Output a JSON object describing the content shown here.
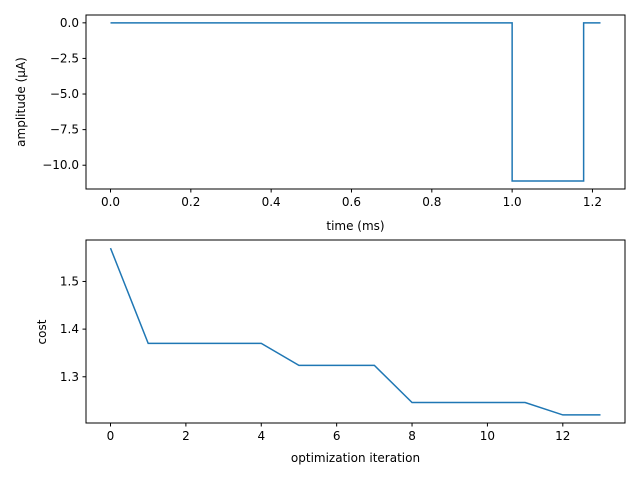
{
  "colors": {
    "series": "#1f77b4",
    "axes": "#000000",
    "background": "#ffffff"
  },
  "chart_data": [
    {
      "type": "line",
      "title": "",
      "xlabel": "time (ms)",
      "ylabel": "amplitude (µA)",
      "xlim": [
        -0.061,
        1.281
      ],
      "ylim": [
        -11.67,
        0.55
      ],
      "x_ticks": [
        0.0,
        0.2,
        0.4,
        0.6,
        0.8,
        1.0,
        1.2
      ],
      "x_tick_labels": [
        "0.0",
        "0.2",
        "0.4",
        "0.6",
        "0.8",
        "1.0",
        "1.2"
      ],
      "y_ticks": [
        0.0,
        -2.5,
        -5.0,
        -7.5,
        -10.0
      ],
      "y_tick_labels": [
        "0.0",
        "−2.5",
        "−5.0",
        "−7.5",
        "−10.0"
      ],
      "grid": false,
      "legend": "none",
      "series": [
        {
          "x": [
            0.0,
            1.0,
            1.0,
            1.178,
            1.178,
            1.22
          ],
          "y": [
            0.0,
            0.0,
            -11.11,
            -11.11,
            0.0,
            0.0
          ]
        }
      ]
    },
    {
      "type": "line",
      "title": "",
      "xlabel": "optimization iteration",
      "ylabel": "cost",
      "xlim": [
        -0.65,
        13.65
      ],
      "ylim": [
        1.203,
        1.587
      ],
      "x_ticks": [
        0,
        2,
        4,
        6,
        8,
        10,
        12
      ],
      "x_tick_labels": [
        "0",
        "2",
        "4",
        "6",
        "8",
        "10",
        "12"
      ],
      "y_ticks": [
        1.5,
        1.4,
        1.3
      ],
      "y_tick_labels": [
        "1.5",
        "1.4",
        "1.3"
      ],
      "grid": false,
      "legend": "none",
      "series": [
        {
          "x": [
            0,
            1,
            2,
            3,
            4,
            5,
            6,
            7,
            8,
            9,
            10,
            11,
            12,
            13
          ],
          "y": [
            1.57,
            1.37,
            1.37,
            1.37,
            1.37,
            1.324,
            1.324,
            1.324,
            1.246,
            1.246,
            1.246,
            1.246,
            1.22,
            1.22
          ]
        }
      ]
    }
  ]
}
